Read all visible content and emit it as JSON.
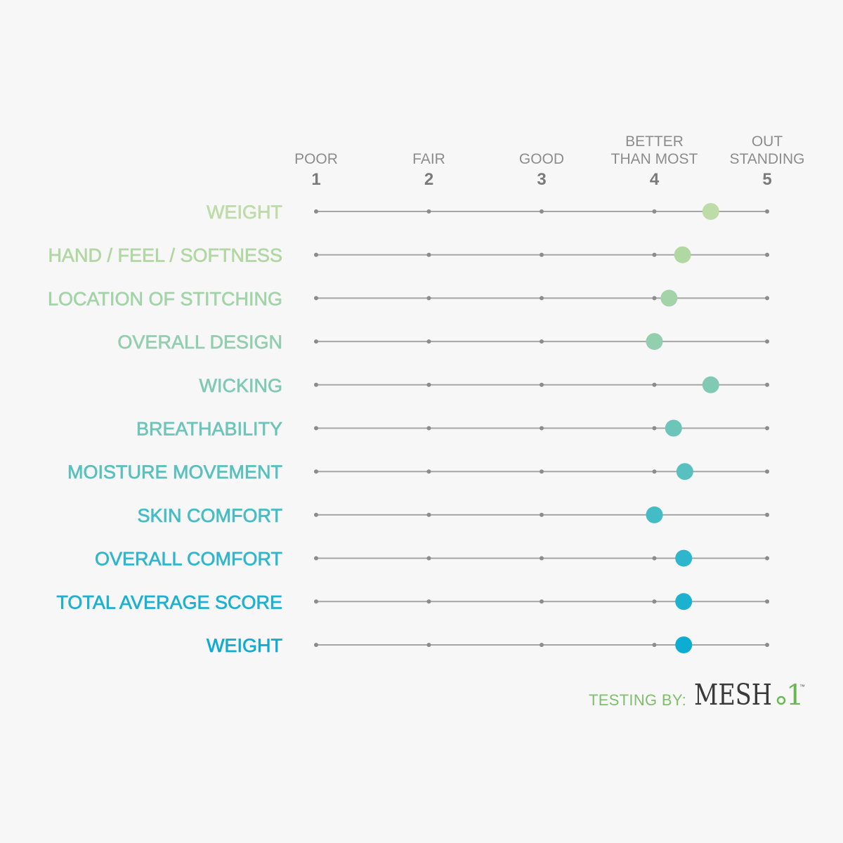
{
  "chart_data": {
    "type": "scatter",
    "xlim": [
      1,
      5
    ],
    "scale_ticks": [
      {
        "value": 1,
        "label": [
          "POOR"
        ]
      },
      {
        "value": 2,
        "label": [
          "FAIR"
        ]
      },
      {
        "value": 3,
        "label": [
          "GOOD"
        ]
      },
      {
        "value": 4,
        "label": [
          "BETTER",
          "THAN MOST"
        ]
      },
      {
        "value": 5,
        "label": [
          "OUT",
          "STANDING"
        ]
      }
    ],
    "categories": [
      "WEIGHT",
      "HAND / FEEL / SOFTNESS",
      "LOCATION OF STITCHING",
      "OVERALL DESIGN",
      "WICKING",
      "BREATHABILITY",
      "MOISTURE MOVEMENT",
      "SKIN COMFORT",
      "OVERALL COMFORT",
      "TOTAL AVERAGE SCORE",
      "WEIGHT"
    ],
    "values": [
      4.5,
      4.25,
      4.13,
      4,
      4.5,
      4.17,
      4.27,
      4,
      4.26,
      4.26,
      4.26
    ],
    "colors": [
      "#bedca8",
      "#b1d8a3",
      "#a3d4a9",
      "#92cfae",
      "#80cab4",
      "#6dc5ba",
      "#58c0bf",
      "#44bcc6",
      "#30b6cc",
      "#1db1d0",
      "#0dacd3"
    ],
    "grid": false
  },
  "credit": {
    "label": "TESTING BY:",
    "label_color": "#7dbf6b",
    "logo": {
      "wordmark": "MESH",
      "numeral": "1",
      "trademark": "™",
      "wordmark_color": "#3a3a3a",
      "accent_color": "#6cb653"
    }
  },
  "colors": {
    "background": "#f8f7f8",
    "track": "#a5a5a5",
    "tick": "#8c8c8c",
    "scale_label": "#8c8c8c",
    "scale_number": "#7a7a7a"
  }
}
